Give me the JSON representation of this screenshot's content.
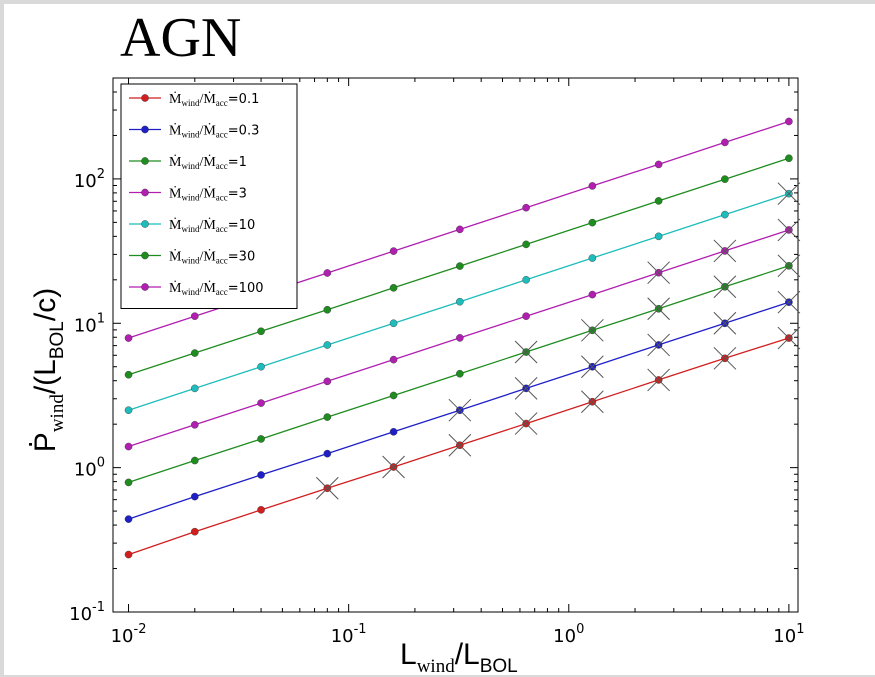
{
  "chart_data": {
    "type": "line",
    "title": "AGN",
    "xlabel": {
      "main": "L",
      "sub1": "wind",
      "slash": "/L",
      "sub2": "BOL"
    },
    "ylabel": {
      "main": "P",
      "sub1": "wind",
      "mid": "/(L",
      "sub2": "BOL",
      "end": "/c)"
    },
    "xscale": "log",
    "yscale": "log",
    "xlim": [
      0.0085,
      11
    ],
    "ylim": [
      0.1,
      500
    ],
    "xticks": [
      {
        "value": 0.01,
        "base": "10",
        "exp": "-2"
      },
      {
        "value": 0.1,
        "base": "10",
        "exp": "-1"
      },
      {
        "value": 1,
        "base": "10",
        "exp": "0"
      },
      {
        "value": 10,
        "base": "10",
        "exp": "1"
      }
    ],
    "yticks": [
      {
        "value": 0.1,
        "base": "10",
        "exp": "-1"
      },
      {
        "value": 1,
        "base": "10",
        "exp": "0"
      },
      {
        "value": 10,
        "base": "10",
        "exp": "1"
      },
      {
        "value": 100,
        "base": "10",
        "exp": "2"
      }
    ],
    "legend_position": "top-left",
    "x": [
      0.01,
      0.02,
      0.04,
      0.08,
      0.16,
      0.32,
      0.64,
      1.28,
      2.56,
      5.12,
      10
    ],
    "series": [
      {
        "name_prefix": "Ṁ",
        "name_sub1": "wind",
        "name_mid": "/Ṁ",
        "name_sub2": "acc",
        "name_value": "=0.1",
        "color": "#d11f1f",
        "values": [
          0.25,
          0.36,
          0.51,
          0.72,
          1.01,
          1.43,
          2.02,
          2.86,
          4.05,
          5.72,
          7.9
        ],
        "crossed_from_index": 3
      },
      {
        "name_prefix": "Ṁ",
        "name_sub1": "wind",
        "name_mid": "/Ṁ",
        "name_sub2": "acc",
        "name_value": "=0.3",
        "color": "#1f1fc8",
        "values": [
          0.44,
          0.63,
          0.89,
          1.25,
          1.77,
          2.5,
          3.54,
          5.0,
          7.08,
          10.0,
          14.0
        ],
        "crossed_from_index": 5
      },
      {
        "name_prefix": "Ṁ",
        "name_sub1": "wind",
        "name_mid": "/Ṁ",
        "name_sub2": "acc",
        "name_value": "=1",
        "color": "#1f8c1f",
        "values": [
          0.79,
          1.12,
          1.58,
          2.24,
          3.16,
          4.47,
          6.32,
          8.94,
          12.6,
          17.9,
          25.0
        ],
        "crossed_from_index": 6
      },
      {
        "name_prefix": "Ṁ",
        "name_sub1": "wind",
        "name_mid": "/Ṁ",
        "name_sub2": "acc",
        "name_value": "=3",
        "color": "#b01fb0",
        "values": [
          1.4,
          1.98,
          2.8,
          3.96,
          5.6,
          7.92,
          11.2,
          15.8,
          22.4,
          31.7,
          44.3
        ],
        "crossed_from_index": 8
      },
      {
        "name_prefix": "Ṁ",
        "name_sub1": "wind",
        "name_mid": "/Ṁ",
        "name_sub2": "acc",
        "name_value": "=10",
        "color": "#1fbcbc",
        "values": [
          2.5,
          3.54,
          5.0,
          7.07,
          10.0,
          14.1,
          20.0,
          28.3,
          40.0,
          56.6,
          79.0
        ],
        "crossed_from_index": 10
      },
      {
        "name_prefix": "Ṁ",
        "name_sub1": "wind",
        "name_mid": "/Ṁ",
        "name_sub2": "acc",
        "name_value": "=30",
        "color": "#1f8c1f",
        "values": [
          4.4,
          6.22,
          8.8,
          12.4,
          17.6,
          24.9,
          35.2,
          49.8,
          70.4,
          99.6,
          139
        ],
        "crossed_from_index": 99
      },
      {
        "name_prefix": "Ṁ",
        "name_sub1": "wind",
        "name_mid": "/Ṁ",
        "name_sub2": "acc",
        "name_value": "=100",
        "color": "#b01fb0",
        "values": [
          7.9,
          11.2,
          15.8,
          22.3,
          31.6,
          44.7,
          63.2,
          89.4,
          126,
          179,
          250
        ],
        "crossed_from_index": 99
      }
    ]
  }
}
